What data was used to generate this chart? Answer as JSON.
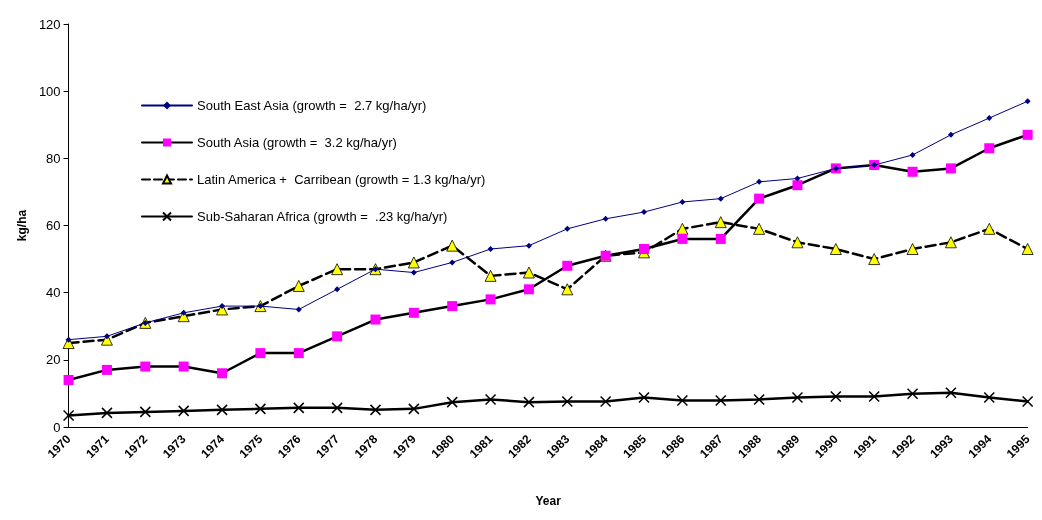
{
  "chart_data": {
    "type": "line",
    "xlabel": "Year",
    "ylabel": "kg/ha",
    "categories": [
      "1970",
      "1971",
      "1972",
      "1973",
      "1974",
      "1975",
      "1976",
      "1977",
      "1978",
      "1979",
      "1980",
      "1981",
      "1982",
      "1983",
      "1984",
      "1985",
      "1986",
      "1987",
      "1988",
      "1989",
      "1990",
      "1991",
      "1992",
      "1993",
      "1994",
      "1995"
    ],
    "ylim": [
      0,
      120
    ],
    "yticks": [
      0,
      20,
      40,
      60,
      80,
      100,
      120
    ],
    "grid": false,
    "legend": "top left",
    "series": [
      {
        "name": "South East Asia (growth =  2.7 kg/ha/yr)",
        "color": "#000080",
        "marker": "diamond",
        "line_style": "solid",
        "values": [
          26,
          27,
          31,
          34,
          36,
          36,
          35,
          41,
          47,
          46,
          49,
          53,
          54,
          59,
          62,
          64,
          67,
          68,
          73,
          74,
          77,
          78,
          81,
          87,
          92,
          97
        ]
      },
      {
        "name": "South Asia (growth =  3.2 kg/ha/yr)",
        "color": "#000000",
        "marker": "square",
        "colors": [
          "#ff00ff",
          "#ff00ff",
          "#ff00ff",
          "#ff00ff",
          "#ff00ff",
          "#ff00ff",
          "#ff00ff",
          "#ff00ff",
          "#ff00ff",
          "#ff00ff",
          "#ff00ff",
          "#ff00ff",
          "#ff00ff",
          "#ff00ff",
          "#ff00ff",
          "#ff00ff",
          "#ff00ff",
          "#ff00ff",
          "#ff00ff",
          "#ff00ff",
          "#ff00ff",
          "#ff00ff",
          "#ff00ff",
          "#ff00ff",
          "#ff00ff",
          "#ff00ff"
        ],
        "line_style": "solid",
        "values": [
          14,
          17,
          18,
          18,
          16,
          22,
          22,
          27,
          32,
          34,
          36,
          38,
          41,
          48,
          51,
          53,
          56,
          56,
          68,
          72,
          77,
          78,
          76,
          77,
          83,
          87
        ]
      },
      {
        "name": "Latin America +  Carribean (growth = 1.3 kg/ha/yr)",
        "color": "#000000",
        "marker": "triangle",
        "colors": [
          "#ffff00",
          "#ffff00",
          "#ffff00",
          "#ffff00",
          "#ffff00",
          "#ffff00",
          "#ffff00",
          "#ffff00",
          "#ffff00",
          "#ffff00",
          "#ffff00",
          "#ffff00",
          "#ffff00",
          "#ffff00",
          "#ffff00",
          "#ffff00",
          "#ffff00",
          "#ffff00",
          "#ffff00",
          "#ffff00",
          "#ffff00",
          "#ffff00",
          "#ffff00",
          "#ffff00",
          "#ffff00",
          "#ffff00"
        ],
        "line_style": "dashed",
        "values": [
          25,
          26,
          31,
          33,
          35,
          36,
          42,
          47,
          47,
          49,
          54,
          45,
          46,
          41,
          51,
          52,
          59,
          61,
          59,
          55,
          53,
          50,
          53,
          55,
          59,
          53
        ]
      },
      {
        "name": "Sub-Saharan Africa (growth =  .23 kg/ha/yr)",
        "color": "#000000",
        "marker": "cross",
        "line_style": "solid",
        "values": [
          3.4,
          4.2,
          4.5,
          4.8,
          5.1,
          5.4,
          5.7,
          5.7,
          5.1,
          5.4,
          7.4,
          8.2,
          7.4,
          7.6,
          7.6,
          8.8,
          7.9,
          7.9,
          8.2,
          8.8,
          9.1,
          9.1,
          9.9,
          10.2,
          8.8,
          7.6
        ]
      }
    ]
  }
}
